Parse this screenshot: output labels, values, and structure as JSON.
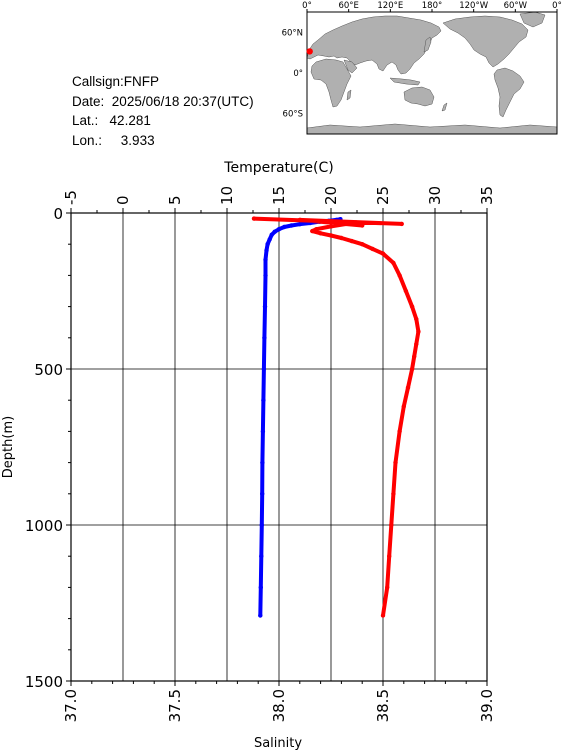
{
  "station": {
    "callsign_label": "Callsign:",
    "callsign": "FNFP",
    "date_label": "Date:",
    "date": "2025/06/18 20:37(UTC)",
    "lat_label": "Lat.:",
    "lat": "42.281",
    "lon_label": "Lon.:",
    "lon": "3.933"
  },
  "map": {
    "top_ticks": [
      "0°",
      "60°E",
      "120°E",
      "180°",
      "120°W",
      "60°W",
      "0°"
    ],
    "left_ticks": [
      "60°N",
      "0°",
      "60°S"
    ],
    "ocean_color": "#ffffff",
    "land_color": "#b0b0b0",
    "marker_color": "#ff0000"
  },
  "chart_data": {
    "type": "line",
    "ylabel": "Depth(m)",
    "ylim": [
      0,
      1500
    ],
    "yticks": [
      "0",
      "500",
      "1000",
      "1500"
    ],
    "top_axis": {
      "label": "Temperature(C)",
      "range": [
        -5,
        35
      ],
      "ticks": [
        "-5",
        "0",
        "5",
        "10",
        "15",
        "20",
        "25",
        "30",
        "35"
      ]
    },
    "bottom_axis": {
      "label": "Salinity",
      "range": [
        37.0,
        39.0
      ],
      "ticks": [
        "37.0",
        "37.5",
        "38.0",
        "38.5",
        "39.0"
      ]
    },
    "grid": true,
    "series": [
      {
        "color": "#0000ff",
        "axis": "top",
        "points": [
          [
            20.9,
            20
          ],
          [
            20.5,
            22
          ],
          [
            19.8,
            25
          ],
          [
            18.9,
            28
          ],
          [
            18.0,
            32
          ],
          [
            17.0,
            36
          ],
          [
            16.2,
            40
          ],
          [
            15.5,
            45
          ],
          [
            15.0,
            52
          ],
          [
            14.6,
            60
          ],
          [
            14.3,
            70
          ],
          [
            14.1,
            85
          ],
          [
            13.9,
            100
          ],
          [
            13.8,
            120
          ],
          [
            13.7,
            150
          ],
          [
            13.7,
            200
          ],
          [
            13.65,
            300
          ],
          [
            13.6,
            400
          ],
          [
            13.55,
            500
          ],
          [
            13.5,
            600
          ],
          [
            13.45,
            700
          ],
          [
            13.4,
            800
          ],
          [
            13.38,
            900
          ],
          [
            13.35,
            1000
          ],
          [
            13.3,
            1100
          ],
          [
            13.25,
            1200
          ],
          [
            13.2,
            1290
          ]
        ]
      },
      {
        "color": "#ff0000",
        "axis": "bottom",
        "points": [
          [
            37.88,
            18
          ],
          [
            38.59,
            35
          ],
          [
            38.1,
            22
          ],
          [
            38.4,
            40
          ],
          [
            38.37,
            30
          ],
          [
            38.25,
            43
          ],
          [
            38.18,
            52
          ],
          [
            38.16,
            58
          ],
          [
            38.2,
            65
          ],
          [
            38.25,
            72
          ],
          [
            38.3,
            80
          ],
          [
            38.35,
            90
          ],
          [
            38.4,
            100
          ],
          [
            38.45,
            115
          ],
          [
            38.5,
            130
          ],
          [
            38.55,
            160
          ],
          [
            38.58,
            200
          ],
          [
            38.61,
            250
          ],
          [
            38.64,
            300
          ],
          [
            38.66,
            340
          ],
          [
            38.67,
            380
          ],
          [
            38.66,
            420
          ],
          [
            38.65,
            460
          ],
          [
            38.64,
            500
          ],
          [
            38.62,
            560
          ],
          [
            38.6,
            620
          ],
          [
            38.58,
            700
          ],
          [
            38.56,
            800
          ],
          [
            38.55,
            900
          ],
          [
            38.54,
            1000
          ],
          [
            38.53,
            1100
          ],
          [
            38.52,
            1200
          ],
          [
            38.5,
            1290
          ]
        ]
      }
    ]
  }
}
